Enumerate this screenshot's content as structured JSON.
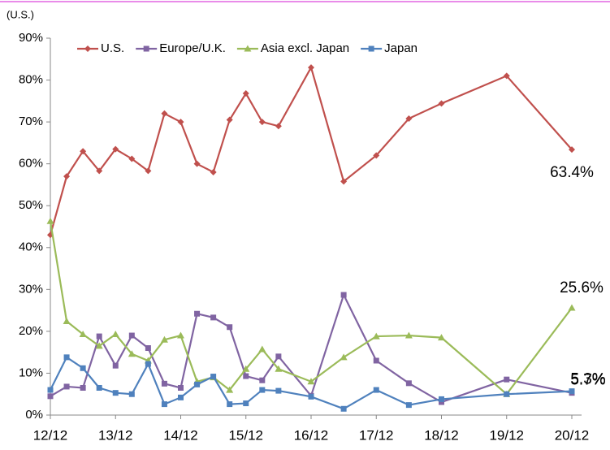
{
  "chart_data": {
    "type": "line",
    "y_label": "(U.S.)",
    "x": [
      0,
      0.25,
      0.5,
      0.75,
      1,
      1.25,
      1.5,
      1.75,
      2,
      2.25,
      2.5,
      2.75,
      3,
      3.25,
      3.5,
      4,
      4.5,
      5,
      5.5,
      6,
      7,
      8
    ],
    "xlim": [
      0,
      8
    ],
    "xticks": [
      {
        "value": 0,
        "label": "12/12"
      },
      {
        "value": 1,
        "label": "13/12"
      },
      {
        "value": 2,
        "label": "14/12"
      },
      {
        "value": 3,
        "label": "15/12"
      },
      {
        "value": 4,
        "label": "16/12"
      },
      {
        "value": 5,
        "label": "17/12"
      },
      {
        "value": 6,
        "label": "18/12"
      },
      {
        "value": 7,
        "label": "19/12"
      },
      {
        "value": 8,
        "label": "20/12"
      }
    ],
    "ylim": [
      0,
      90
    ],
    "yticks": [
      {
        "value": 0,
        "label": "0%"
      },
      {
        "value": 10,
        "label": "10%"
      },
      {
        "value": 20,
        "label": "20%"
      },
      {
        "value": 30,
        "label": "30%"
      },
      {
        "value": 40,
        "label": "40%"
      },
      {
        "value": 50,
        "label": "50%"
      },
      {
        "value": 60,
        "label": "60%"
      },
      {
        "value": 70,
        "label": "70%"
      },
      {
        "value": 80,
        "label": "80%"
      },
      {
        "value": 90,
        "label": "90%"
      }
    ],
    "legend": "top",
    "series": [
      {
        "name": "U.S.",
        "color": "#c0504d",
        "marker": "diamond",
        "values": [
          43,
          57,
          63,
          58.3,
          63.5,
          61.2,
          58.3,
          72,
          70,
          60,
          58,
          70.5,
          76.8,
          70,
          69,
          83,
          55.8,
          62,
          70.8,
          74.4,
          81,
          63.4
        ],
        "value_labels": [
          null,
          null,
          null,
          null,
          null,
          null,
          null,
          null,
          null,
          null,
          null,
          null,
          null,
          null,
          null,
          null,
          null,
          null,
          null,
          null,
          null,
          "63.4%"
        ]
      },
      {
        "name": "Europe/U.K.",
        "color": "#8064a2",
        "marker": "square",
        "values": [
          4.5,
          6.8,
          6.5,
          18.8,
          11.8,
          19,
          16,
          7.5,
          6.5,
          24.2,
          23.3,
          21,
          9.3,
          8.3,
          14,
          4.6,
          28.7,
          13,
          7.6,
          3.1,
          8.5,
          5.3
        ],
        "value_labels": [
          null,
          null,
          null,
          null,
          null,
          null,
          null,
          null,
          null,
          null,
          null,
          null,
          null,
          null,
          null,
          null,
          null,
          null,
          null,
          null,
          null,
          "5.3%"
        ]
      },
      {
        "name": "Asia excl. Japan",
        "color": "#9bbb59",
        "marker": "triangle",
        "values": [
          46.3,
          22.4,
          19.3,
          16.5,
          19.3,
          14.6,
          13,
          18,
          19,
          8,
          9,
          6,
          11,
          15.7,
          11,
          8,
          13.8,
          18.8,
          19,
          18.5,
          5,
          25.6
        ],
        "value_labels": [
          null,
          null,
          null,
          null,
          null,
          null,
          null,
          null,
          null,
          null,
          null,
          null,
          null,
          null,
          null,
          null,
          null,
          null,
          null,
          null,
          null,
          "25.6%"
        ]
      },
      {
        "name": "Japan",
        "color": "#4f81bd",
        "marker": "square",
        "values": [
          6,
          13.8,
          11.2,
          6.5,
          5.3,
          5,
          12.2,
          2.6,
          4.2,
          7.3,
          9.2,
          2.6,
          2.8,
          6,
          5.8,
          4.4,
          1.5,
          6,
          2.4,
          3.8,
          5,
          5.7
        ],
        "value_labels": [
          null,
          null,
          null,
          null,
          null,
          null,
          null,
          null,
          null,
          null,
          null,
          null,
          null,
          null,
          null,
          null,
          null,
          null,
          null,
          null,
          null,
          "5.7%"
        ]
      }
    ]
  }
}
